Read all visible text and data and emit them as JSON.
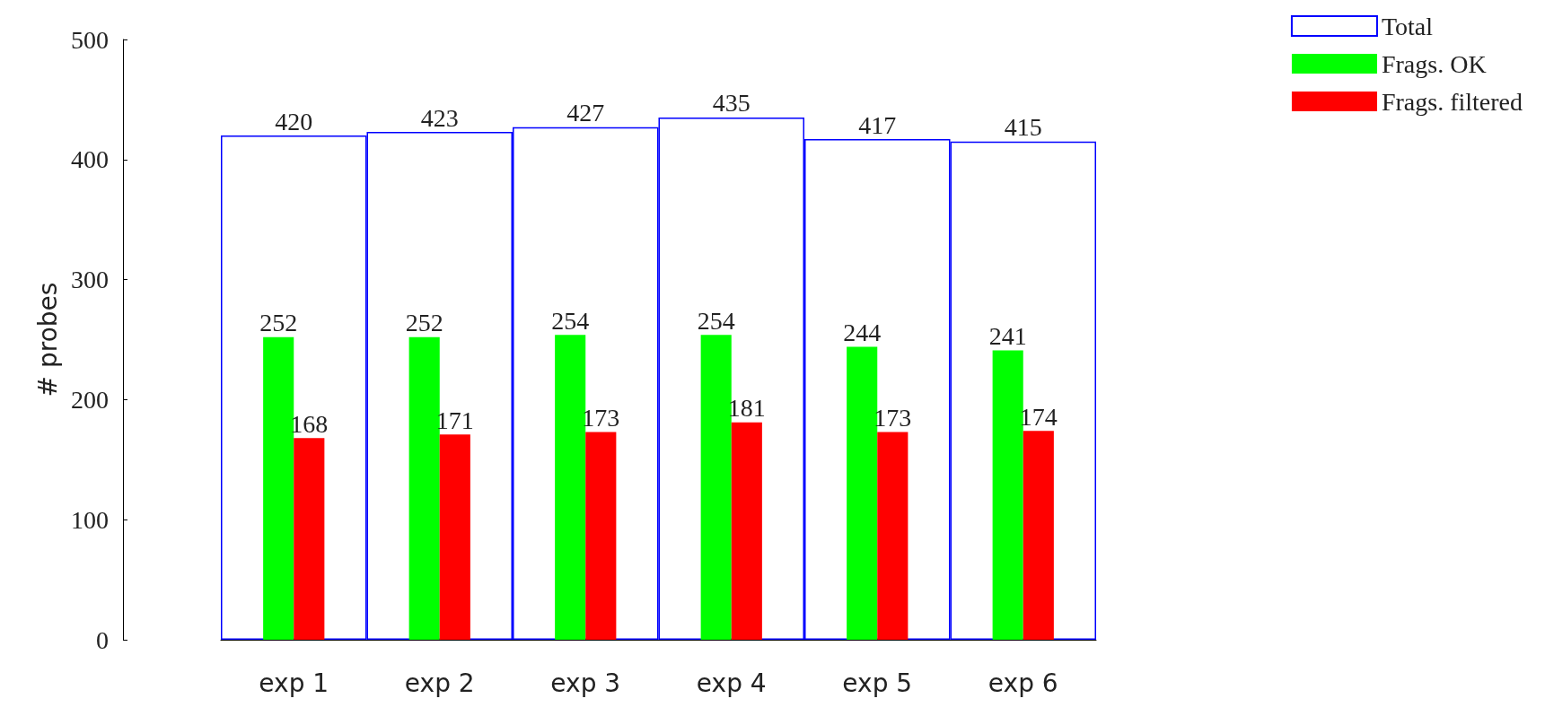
{
  "chart_data": {
    "type": "bar",
    "ylabel": "# probes",
    "categories": [
      "exp 1",
      "exp 2",
      "exp 3",
      "exp 4",
      "exp 5",
      "exp 6"
    ],
    "series": [
      {
        "name": "Total",
        "color": "#0000ff",
        "values": [
          420,
          423,
          427,
          435,
          417,
          415
        ]
      },
      {
        "name": "Frags. OK",
        "color": "#00ff00",
        "values": [
          252,
          252,
          254,
          254,
          244,
          241
        ]
      },
      {
        "name": "Frags. filtered",
        "color": "#ff0000",
        "values": [
          168,
          171,
          173,
          181,
          173,
          174
        ]
      }
    ],
    "ylim": [
      0,
      500
    ],
    "yticks": [
      0,
      100,
      200,
      300,
      400,
      500
    ],
    "data_labels": true,
    "legend": "top right",
    "grid": false
  }
}
